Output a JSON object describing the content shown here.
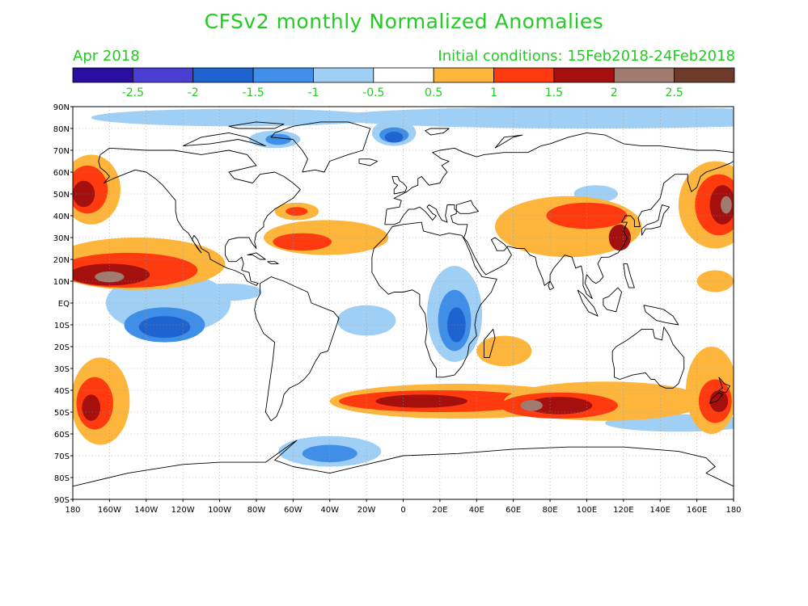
{
  "title": "CFSv2 monthly Normalized Anomalies",
  "valid_month": "Apr 2018",
  "initial_conditions": "Initial conditions: 15Feb2018-24Feb2018",
  "colorbar": {
    "colors": [
      "#2a0ea0",
      "#4a3fd2",
      "#1f63d0",
      "#3f8ee8",
      "#9fcff5",
      "#ffffff",
      "#fdb53c",
      "#ff3a0e",
      "#a5100e",
      "#a07c70",
      "#6e3a2a"
    ],
    "labels": [
      "-2.5",
      "-2",
      "-1.5",
      "-1",
      "-0.5",
      "0.5",
      "1",
      "1.5",
      "2",
      "2.5"
    ]
  },
  "axes": {
    "lat_labels": [
      "90N",
      "80N",
      "70N",
      "60N",
      "50N",
      "40N",
      "30N",
      "20N",
      "10N",
      "EQ",
      "10S",
      "20S",
      "30S",
      "40S",
      "50S",
      "60S",
      "70S",
      "80S",
      "90S"
    ],
    "lon_labels": [
      "180",
      "160W",
      "140W",
      "120W",
      "100W",
      "80W",
      "60W",
      "40W",
      "20W",
      "0",
      "20E",
      "40E",
      "60E",
      "80E",
      "100E",
      "120E",
      "140E",
      "160E",
      "180"
    ]
  },
  "anomalies": [
    {
      "level": "-0.5",
      "lon": 100,
      "lat": 85,
      "rx": 140,
      "ry": 5
    },
    {
      "level": "-0.5",
      "lon": -90,
      "lat": 85,
      "rx": 80,
      "ry": 4
    },
    {
      "level": "-0.5",
      "lon": -5,
      "lat": 78,
      "rx": 12,
      "ry": 6
    },
    {
      "level": "-1",
      "lon": -5,
      "lat": 77,
      "rx": 8,
      "ry": 3.5
    },
    {
      "level": "-1.5",
      "lon": -5,
      "lat": 76,
      "rx": 5,
      "ry": 2.5
    },
    {
      "level": "-0.5",
      "lon": -70,
      "lat": 75,
      "rx": 14,
      "ry": 4
    },
    {
      "level": "-1",
      "lon": -68,
      "lat": 75,
      "rx": 7,
      "ry": 2.5
    },
    {
      "level": "-0.5",
      "lon": -128,
      "lat": 0,
      "rx": 34,
      "ry": 14
    },
    {
      "level": "-1",
      "lon": -130,
      "lat": -10,
      "rx": 22,
      "ry": 8
    },
    {
      "level": "-1.5",
      "lon": -130,
      "lat": -11,
      "rx": 14,
      "ry": 5
    },
    {
      "level": "-0.5",
      "lon": -95,
      "lat": 5,
      "rx": 18,
      "ry": 4
    },
    {
      "level": "-0.5",
      "lon": 28,
      "lat": -5,
      "rx": 15,
      "ry": 22
    },
    {
      "level": "-1",
      "lon": 28,
      "lat": -8,
      "rx": 9,
      "ry": 14
    },
    {
      "level": "-1.5",
      "lon": 29,
      "lat": -10,
      "rx": 5,
      "ry": 8
    },
    {
      "level": "-0.5",
      "lon": -20,
      "lat": -8,
      "rx": 16,
      "ry": 7
    },
    {
      "level": "-0.5",
      "lon": 150,
      "lat": -55,
      "rx": 40,
      "ry": 4
    },
    {
      "level": "-0.5",
      "lon": -40,
      "lat": -68,
      "rx": 28,
      "ry": 7
    },
    {
      "level": "-1",
      "lon": -40,
      "lat": -69,
      "rx": 15,
      "ry": 4
    },
    {
      "level": "-0.5",
      "lon": 105,
      "lat": 50,
      "rx": 12,
      "ry": 4
    },
    {
      "level": "0.5",
      "lon": -170,
      "lat": 52,
      "rx": 16,
      "ry": 16
    },
    {
      "level": "1",
      "lon": -172,
      "lat": 52,
      "rx": 11,
      "ry": 11
    },
    {
      "level": "1.5",
      "lon": -174,
      "lat": 50,
      "rx": 6,
      "ry": 6
    },
    {
      "level": "0.5",
      "lon": -145,
      "lat": 18,
      "rx": 48,
      "ry": 12
    },
    {
      "level": "1",
      "lon": -150,
      "lat": 15,
      "rx": 38,
      "ry": 8
    },
    {
      "level": "1.5",
      "lon": -160,
      "lat": 13,
      "rx": 22,
      "ry": 5
    },
    {
      "level": "2",
      "lon": -160,
      "lat": 12,
      "rx": 8,
      "ry": 2.5
    },
    {
      "level": "0.5",
      "lon": -42,
      "lat": 30,
      "rx": 34,
      "ry": 8
    },
    {
      "level": "1",
      "lon": -55,
      "lat": 28,
      "rx": 16,
      "ry": 4
    },
    {
      "level": "0.5",
      "lon": -58,
      "lat": 42,
      "rx": 12,
      "ry": 4
    },
    {
      "level": "1",
      "lon": -58,
      "lat": 42,
      "rx": 6,
      "ry": 2
    },
    {
      "level": "0.5",
      "lon": 90,
      "lat": 35,
      "rx": 40,
      "ry": 14
    },
    {
      "level": "1",
      "lon": 100,
      "lat": 40,
      "rx": 22,
      "ry": 6
    },
    {
      "level": "1.5",
      "lon": 118,
      "lat": 30,
      "rx": 6,
      "ry": 6
    },
    {
      "level": "0.5",
      "lon": 170,
      "lat": 45,
      "rx": 20,
      "ry": 20
    },
    {
      "level": "1",
      "lon": 172,
      "lat": 45,
      "rx": 13,
      "ry": 14
    },
    {
      "level": "1.5",
      "lon": 174,
      "lat": 45,
      "rx": 7,
      "ry": 9
    },
    {
      "level": "2",
      "lon": 176,
      "lat": 45,
      "rx": 3,
      "ry": 4
    },
    {
      "level": "0.5",
      "lon": -165,
      "lat": -45,
      "rx": 16,
      "ry": 20
    },
    {
      "level": "1",
      "lon": -168,
      "lat": -46,
      "rx": 10,
      "ry": 12
    },
    {
      "level": "1.5",
      "lon": -170,
      "lat": -48,
      "rx": 5,
      "ry": 6
    },
    {
      "level": "0.5",
      "lon": 30,
      "lat": -45,
      "rx": 70,
      "ry": 8
    },
    {
      "level": "1",
      "lon": 20,
      "lat": -45,
      "rx": 55,
      "ry": 5
    },
    {
      "level": "1.5",
      "lon": 10,
      "lat": -45,
      "rx": 25,
      "ry": 3
    },
    {
      "level": "0.5",
      "lon": 110,
      "lat": -45,
      "rx": 55,
      "ry": 9
    },
    {
      "level": "1",
      "lon": 85,
      "lat": -47,
      "rx": 32,
      "ry": 6
    },
    {
      "level": "1.5",
      "lon": 85,
      "lat": -47,
      "rx": 18,
      "ry": 4
    },
    {
      "level": "2",
      "lon": 70,
      "lat": -47,
      "rx": 6,
      "ry": 2.5
    },
    {
      "level": "0.5",
      "lon": 168,
      "lat": -40,
      "rx": 14,
      "ry": 20
    },
    {
      "level": "1",
      "lon": 170,
      "lat": -45,
      "rx": 9,
      "ry": 10
    },
    {
      "level": "1.5",
      "lon": 172,
      "lat": -45,
      "rx": 5,
      "ry": 5
    },
    {
      "level": "0.5",
      "lon": 55,
      "lat": -22,
      "rx": 15,
      "ry": 7
    },
    {
      "level": "0.5",
      "lon": 170,
      "lat": 10,
      "rx": 10,
      "ry": 5
    }
  ]
}
